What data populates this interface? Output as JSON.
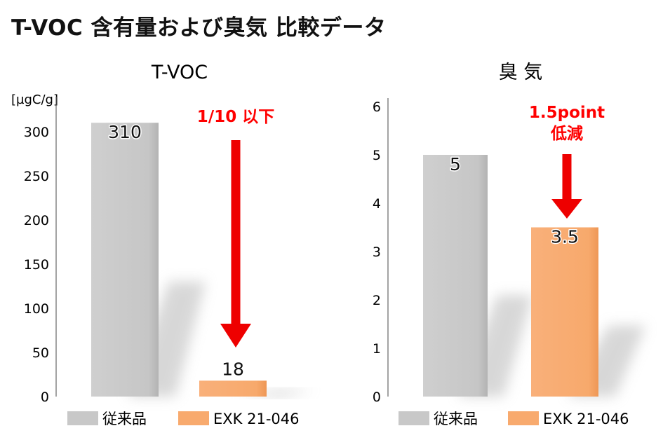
{
  "title": "T-VOC 含有量および臭気 比較データ",
  "colors": {
    "conventional": "#c8c8c8",
    "exk": "#f8aa6e",
    "arrow": "#ee0000",
    "annotation": "#ff0000",
    "axis": "#666666"
  },
  "chart_data": [
    {
      "type": "bar",
      "title": "T-VOC",
      "ylabel": "[µgC/g]",
      "ylim": [
        0,
        330
      ],
      "yticks": [
        0,
        50,
        100,
        150,
        200,
        250,
        300
      ],
      "categories": [
        "従来品",
        "EXK 21-046"
      ],
      "values": [
        310,
        18
      ],
      "data_labels": [
        "310",
        "18"
      ],
      "legend": [
        "従来品",
        "EXK 21-046"
      ],
      "legend_position": "bottom",
      "grid": false,
      "annotation": {
        "lines": [
          "1/10 以下"
        ],
        "arrow": "down"
      }
    },
    {
      "type": "bar",
      "title": "臭 気",
      "ylabel": "",
      "ylim": [
        0,
        6
      ],
      "yticks": [
        0,
        1,
        2,
        3,
        4,
        5,
        6
      ],
      "categories": [
        "従来品",
        "EXK 21-046"
      ],
      "values": [
        5,
        3.5
      ],
      "data_labels": [
        "5",
        "3.5"
      ],
      "legend": [
        "従来品",
        "EXK 21-046"
      ],
      "legend_position": "bottom",
      "grid": false,
      "annotation": {
        "lines": [
          "1.5point",
          "低減"
        ],
        "arrow": "down"
      }
    }
  ]
}
